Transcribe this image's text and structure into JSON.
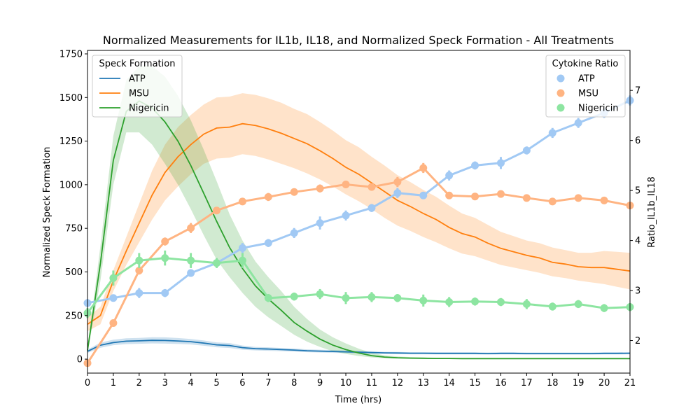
{
  "chart_data": {
    "type": "line",
    "title": "Normalized Measurements for IL1b, IL18, and Normalized Speck Formation - All Treatments",
    "xlabel": "Time (hrs)",
    "ylabel": "Normalized Speck Formation",
    "y2label": "Ratio_IL1b_IL18",
    "xlim": [
      0,
      21
    ],
    "ylim": [
      -80,
      1770
    ],
    "y2lim": [
      1.35,
      7.8
    ],
    "xticks": [
      0,
      1,
      2,
      3,
      4,
      5,
      6,
      7,
      8,
      9,
      10,
      11,
      12,
      13,
      14,
      15,
      16,
      17,
      18,
      19,
      20,
      21
    ],
    "yticks": [
      0,
      250,
      500,
      750,
      1000,
      1250,
      1500,
      1750
    ],
    "y2ticks": [
      2,
      3,
      4,
      5,
      6,
      7
    ],
    "speck_legend_title": "Speck Formation",
    "ratio_legend_title": "Cytokine Ratio",
    "speck_series": [
      {
        "name": "ATP",
        "color": "#1f77b4",
        "x": [
          0,
          0.5,
          1,
          1.5,
          2,
          2.5,
          3,
          3.5,
          4,
          4.5,
          5,
          5.5,
          6,
          6.5,
          7,
          7.5,
          8,
          8.5,
          9,
          9.5,
          10,
          10.5,
          11,
          11.5,
          12,
          12.5,
          13,
          13.5,
          14,
          14.5,
          15,
          15.5,
          16,
          16.5,
          17,
          17.5,
          18,
          18.5,
          19,
          19.5,
          20,
          20.5,
          21
        ],
        "y": [
          45,
          80,
          95,
          103,
          105,
          108,
          107,
          104,
          100,
          92,
          82,
          78,
          66,
          60,
          58,
          55,
          52,
          48,
          46,
          44,
          42,
          40,
          38,
          36,
          35,
          34,
          34,
          33,
          33,
          33,
          33,
          32,
          33,
          33,
          32,
          32,
          32,
          32,
          32,
          32,
          33,
          33,
          34
        ],
        "lower": [
          35,
          65,
          80,
          86,
          88,
          90,
          89,
          87,
          84,
          77,
          68,
          64,
          54,
          50,
          48,
          46,
          43,
          40,
          38,
          36,
          35,
          33,
          31,
          30,
          29,
          28,
          28,
          27,
          27,
          27,
          27,
          26,
          27,
          27,
          26,
          26,
          26,
          26,
          26,
          26,
          27,
          27,
          28
        ],
        "upper": [
          55,
          95,
          112,
          120,
          122,
          126,
          125,
          121,
          116,
          107,
          96,
          92,
          78,
          70,
          68,
          64,
          61,
          56,
          54,
          52,
          49,
          47,
          45,
          42,
          41,
          40,
          40,
          39,
          39,
          39,
          39,
          38,
          39,
          39,
          38,
          38,
          38,
          38,
          38,
          38,
          39,
          39,
          40
        ]
      },
      {
        "name": "MSU",
        "color": "#ff7f0e",
        "x": [
          0,
          0.5,
          1,
          1.5,
          2,
          2.5,
          3,
          3.5,
          4,
          4.5,
          5,
          5.5,
          6,
          6.5,
          7,
          7.5,
          8,
          8.5,
          9,
          9.5,
          10,
          10.5,
          11,
          11.5,
          12,
          12.5,
          13,
          13.5,
          14,
          14.5,
          15,
          15.5,
          16,
          16.5,
          17,
          17.5,
          18,
          18.5,
          19,
          19.5,
          20,
          20.5,
          21
        ],
        "y": [
          200,
          250,
          450,
          620,
          780,
          940,
          1070,
          1160,
          1230,
          1290,
          1325,
          1330,
          1350,
          1340,
          1320,
          1295,
          1265,
          1235,
          1195,
          1150,
          1100,
          1060,
          1010,
          960,
          910,
          875,
          835,
          800,
          755,
          720,
          700,
          665,
          635,
          615,
          595,
          580,
          555,
          545,
          530,
          525,
          525,
          515,
          505
        ],
        "lower": [
          160,
          200,
          390,
          540,
          670,
          800,
          910,
          990,
          1060,
          1120,
          1150,
          1155,
          1175,
          1165,
          1145,
          1120,
          1095,
          1065,
          1030,
          990,
          945,
          905,
          860,
          810,
          765,
          735,
          700,
          670,
          635,
          605,
          590,
          565,
          540,
          525,
          510,
          495,
          475,
          465,
          450,
          440,
          430,
          415,
          400
        ],
        "upper": [
          240,
          300,
          510,
          700,
          890,
          1080,
          1230,
          1330,
          1400,
          1460,
          1500,
          1505,
          1525,
          1515,
          1495,
          1470,
          1435,
          1405,
          1360,
          1310,
          1255,
          1215,
          1160,
          1110,
          1055,
          1015,
          970,
          930,
          880,
          835,
          810,
          770,
          730,
          705,
          680,
          665,
          640,
          625,
          610,
          610,
          620,
          615,
          610
        ]
      },
      {
        "name": "Nigericin",
        "color": "#2ca02c",
        "x": [
          0,
          0.5,
          1,
          1.5,
          2,
          2.5,
          3,
          3.5,
          4,
          4.5,
          5,
          5.5,
          6,
          6.5,
          7,
          7.5,
          8,
          8.5,
          9,
          9.5,
          10,
          10.5,
          11,
          11.5,
          12,
          12.5,
          13,
          13.5,
          14,
          14.5,
          15,
          15.5,
          16,
          16.5,
          17,
          17.5,
          18,
          18.5,
          19,
          19.5,
          20,
          20.5,
          21
        ],
        "y": [
          50,
          550,
          1140,
          1420,
          1480,
          1440,
          1360,
          1250,
          1110,
          950,
          790,
          640,
          520,
          420,
          345,
          280,
          210,
          160,
          115,
          80,
          55,
          35,
          20,
          12,
          8,
          6,
          5,
          4,
          4,
          3,
          3,
          3,
          3,
          3,
          3,
          3,
          3,
          3,
          3,
          3,
          3,
          3,
          3
        ],
        "lower": [
          35,
          450,
          1000,
          1300,
          1300,
          1230,
          1120,
          1000,
          860,
          710,
          570,
          470,
          380,
          300,
          240,
          190,
          140,
          100,
          70,
          45,
          30,
          18,
          10,
          5,
          3,
          2,
          2,
          1,
          1,
          1,
          1,
          1,
          1,
          1,
          1,
          1,
          1,
          1,
          1,
          1,
          1,
          1,
          1
        ],
        "upper": [
          65,
          650,
          1280,
          1600,
          1680,
          1680,
          1620,
          1510,
          1370,
          1200,
          1020,
          830,
          680,
          560,
          470,
          390,
          300,
          230,
          170,
          125,
          90,
          60,
          35,
          22,
          15,
          12,
          10,
          8,
          7,
          6,
          6,
          5,
          5,
          5,
          5,
          5,
          5,
          5,
          5,
          5,
          5,
          5,
          5
        ]
      }
    ],
    "ratio_series": [
      {
        "name": "ATP",
        "color": "#a1c9f4",
        "x": [
          0,
          1,
          2,
          3,
          4,
          5,
          6,
          7,
          8,
          9,
          10,
          11,
          12,
          13,
          14,
          15,
          16,
          17,
          18,
          19,
          20,
          21
        ],
        "y": [
          2.75,
          2.85,
          2.95,
          2.95,
          3.35,
          3.55,
          3.85,
          3.95,
          4.15,
          4.35,
          4.5,
          4.65,
          4.95,
          4.9,
          5.3,
          5.5,
          5.55,
          5.8,
          6.15,
          6.35,
          6.55,
          6.8
        ],
        "err": [
          0.08,
          0.05,
          0.1,
          0.08,
          0.05,
          0.05,
          0.1,
          0.08,
          0.1,
          0.13,
          0.1,
          0.08,
          0.1,
          0.06,
          0.1,
          0.08,
          0.12,
          0.08,
          0.1,
          0.1,
          0.1,
          0.1
        ]
      },
      {
        "name": "MSU",
        "color": "#ffb482",
        "x": [
          0,
          1,
          2,
          3,
          4,
          5,
          6,
          7,
          8,
          9,
          10,
          11,
          12,
          13,
          14,
          15,
          16,
          17,
          18,
          19,
          20,
          21
        ],
        "y": [
          1.55,
          2.35,
          3.4,
          3.98,
          4.25,
          4.6,
          4.78,
          4.87,
          4.97,
          5.04,
          5.12,
          5.07,
          5.17,
          5.45,
          4.9,
          4.88,
          4.93,
          4.85,
          4.78,
          4.85,
          4.8,
          4.7
        ],
        "err": [
          0.05,
          0.05,
          0.08,
          0.08,
          0.1,
          0.05,
          0.06,
          0.08,
          0.06,
          0.08,
          0.06,
          0.05,
          0.1,
          0.1,
          0.06,
          0.06,
          0.05,
          0.05,
          0.05,
          0.06,
          0.05,
          0.05
        ]
      },
      {
        "name": "Nigericin",
        "color": "#8de5a1",
        "x": [
          0,
          1,
          2,
          3,
          4,
          5,
          6,
          7,
          8,
          9,
          10,
          11,
          12,
          13,
          14,
          15,
          16,
          17,
          18,
          19,
          20,
          21
        ],
        "y": [
          2.55,
          3.25,
          3.6,
          3.65,
          3.6,
          3.55,
          3.6,
          2.85,
          2.88,
          2.93,
          2.85,
          2.87,
          2.85,
          2.8,
          2.77,
          2.78,
          2.77,
          2.73,
          2.68,
          2.73,
          2.65,
          2.67
        ],
        "err": [
          0.1,
          0.15,
          0.15,
          0.15,
          0.15,
          0.1,
          0.15,
          0.08,
          0.08,
          0.1,
          0.12,
          0.1,
          0.08,
          0.12,
          0.1,
          0.08,
          0.08,
          0.1,
          0.08,
          0.08,
          0.08,
          0.08
        ]
      }
    ]
  }
}
